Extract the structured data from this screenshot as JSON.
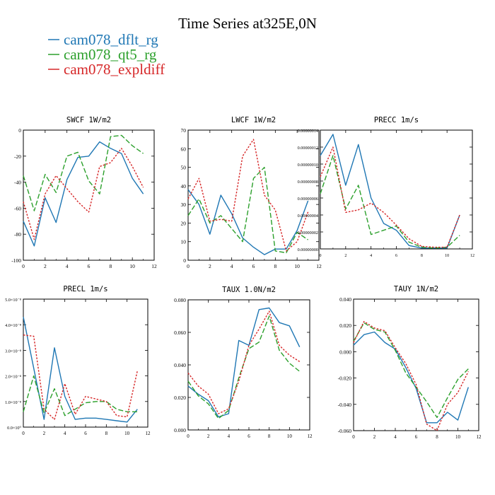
{
  "title": "Time Series at325E,0N",
  "legend": [
    {
      "name": "cam078_dflt_rg",
      "color": "#1f77b4",
      "dash": "solid"
    },
    {
      "name": "cam078_qt5_rg",
      "color": "#2ca02c",
      "dash": "dashed"
    },
    {
      "name": "cam078_expldiff",
      "color": "#d62728",
      "dash": "dotted"
    }
  ],
  "chart_data": [
    {
      "type": "line",
      "title": "SWCF   1W/m2",
      "x": [
        0,
        1,
        2,
        3,
        4,
        5,
        6,
        7,
        8,
        9,
        10,
        11
      ],
      "xticks": [
        "0",
        "2",
        "4",
        "6",
        "8",
        "10",
        "12"
      ],
      "xlim": [
        0,
        12
      ],
      "ylim": [
        -100,
        0
      ],
      "yticks": [
        0,
        -20,
        -40,
        -60,
        -80,
        -100
      ],
      "yticklabels": [
        "0",
        "-20",
        "-40",
        "-60",
        "-80",
        "-100"
      ],
      "series": [
        {
          "name": "cam078_dflt_rg",
          "values": [
            -70,
            -89,
            -52,
            -71,
            -38,
            -21,
            -20,
            -9,
            -14,
            -18,
            -37,
            -49
          ]
        },
        {
          "name": "cam078_qt5_rg",
          "values": [
            -35,
            -62,
            -34,
            -48,
            -20,
            -17,
            -39,
            -49,
            -5,
            -4,
            -12,
            -18
          ]
        },
        {
          "name": "cam078_expldiff",
          "values": [
            -55,
            -84,
            -49,
            -35,
            -45,
            -55,
            -63,
            -28,
            -25,
            -14,
            -28,
            -44
          ]
        }
      ]
    },
    {
      "type": "line",
      "title": "LWCF   1W/m2",
      "x": [
        0,
        1,
        2,
        3,
        4,
        5,
        6,
        7,
        8,
        9,
        10,
        11
      ],
      "xticks": [
        "0",
        "2",
        "4",
        "6",
        "8",
        "10",
        "12"
      ],
      "xlim": [
        0,
        12
      ],
      "ylim": [
        0,
        70
      ],
      "yticks": [
        0,
        10,
        20,
        30,
        40,
        50,
        60,
        70
      ],
      "yticklabels": [
        "0",
        "10",
        "20",
        "30",
        "40",
        "50",
        "60",
        "70"
      ],
      "series": [
        {
          "name": "cam078_dflt_rg",
          "values": [
            38,
            30,
            14,
            35,
            25,
            12,
            7,
            3,
            6,
            6,
            16,
            32
          ]
        },
        {
          "name": "cam078_qt5_rg",
          "values": [
            24,
            33,
            20,
            24,
            17,
            10,
            44,
            50,
            5,
            4,
            15,
            11
          ]
        },
        {
          "name": "cam078_expldiff",
          "values": [
            33,
            44,
            21,
            22,
            21,
            56,
            65,
            35,
            27,
            5,
            10,
            26
          ]
        }
      ]
    },
    {
      "type": "line",
      "title": "PRECC   1m/s",
      "x": [
        0,
        1,
        2,
        3,
        4,
        5,
        6,
        7,
        8,
        9,
        10,
        11
      ],
      "xticks": [
        "0",
        "2",
        "4",
        "6",
        "8",
        "10",
        "12"
      ],
      "xlim": [
        0,
        12
      ],
      "ylim": [
        0,
        1.4e-07
      ],
      "yticks": [
        0,
        2e-08,
        4e-08,
        6e-08,
        8e-08,
        1e-07,
        1.2e-07,
        1.4e-07
      ],
      "yticklabels": [
        "0.00000000",
        "0.00000002",
        "0.00000004",
        "0.00000006",
        "0.00000008",
        "0.00000010",
        "0.00000012",
        "0.00000014"
      ],
      "series": [
        {
          "name": "cam078_dflt_rg",
          "values": [
            1.1e-07,
            1.35e-07,
            7.5e-08,
            1.23e-07,
            6e-08,
            3e-08,
            2.2e-08,
            4e-09,
            1e-09,
            1e-09,
            1e-09,
            4e-08
          ]
        },
        {
          "name": "cam078_qt5_rg",
          "values": [
            6.5e-08,
            1.1e-07,
            4.7e-08,
            7.5e-08,
            1.7e-08,
            2.2e-08,
            2.7e-08,
            8e-09,
            2e-09,
            1e-09,
            2e-09,
            1.6e-08
          ]
        },
        {
          "name": "cam078_expldiff",
          "values": [
            8.5e-08,
            1.2e-07,
            4.3e-08,
            4.6e-08,
            5.4e-08,
            4.3e-08,
            2.8e-08,
            1.2e-08,
            3e-09,
            2e-09,
            2e-09,
            4e-08
          ]
        }
      ]
    },
    {
      "type": "line",
      "title": "PRECL   1m/s",
      "x": [
        0,
        1,
        2,
        3,
        4,
        5,
        6,
        7,
        8,
        9,
        10,
        11
      ],
      "xticks": [
        "0",
        "2",
        "4",
        "6",
        "8",
        "10",
        "12"
      ],
      "xlim": [
        0,
        12
      ],
      "ylim": [
        0,
        5
      ],
      "yticks": [
        0,
        1,
        2,
        3,
        4,
        5
      ],
      "yticklabels": [
        "0.0×10⁰",
        "1.0×10⁻⁸",
        "2.0×10⁻⁸",
        "3.0×10⁻⁸",
        "4.0×10⁻⁸",
        "5.0×10⁻⁸"
      ],
      "series": [
        {
          "name": "cam078_dflt_rg",
          "values": [
            4.3,
            2.3,
            0.3,
            3.1,
            1.2,
            0.3,
            0.35,
            0.35,
            0.3,
            0.25,
            0.2,
            0.7
          ]
        },
        {
          "name": "cam078_qt5_rg",
          "values": [
            0.6,
            2,
            0.55,
            1.5,
            0.45,
            0.7,
            0.95,
            1.0,
            1.0,
            0.7,
            0.6,
            0.6
          ]
        },
        {
          "name": "cam078_expldiff",
          "values": [
            3.6,
            3.55,
            0.7,
            0.3,
            1.7,
            0.5,
            1.2,
            1.1,
            1.0,
            0.45,
            0.4,
            2.2
          ]
        }
      ]
    },
    {
      "type": "line",
      "title": "TAUX   1.0N/m2",
      "x": [
        0,
        1,
        2,
        3,
        4,
        5,
        6,
        7,
        8,
        9,
        10,
        11
      ],
      "xticks": [
        "0",
        "2",
        "4",
        "6",
        "8",
        "10",
        "12"
      ],
      "xlim": [
        0,
        12
      ],
      "ylim": [
        0,
        0.08
      ],
      "yticks": [
        0,
        0.02,
        0.04,
        0.06,
        0.08
      ],
      "yticklabels": [
        "0.000",
        "0.020",
        "0.040",
        "0.060",
        "0.080"
      ],
      "series": [
        {
          "name": "cam078_dflt_rg",
          "values": [
            0.027,
            0.022,
            0.018,
            0.008,
            0.01,
            0.055,
            0.052,
            0.074,
            0.075,
            0.066,
            0.064,
            0.051
          ]
        },
        {
          "name": "cam078_qt5_rg",
          "values": [
            0.03,
            0.021,
            0.016,
            0.007,
            0.012,
            0.032,
            0.05,
            0.054,
            0.07,
            0.049,
            0.041,
            0.036
          ]
        },
        {
          "name": "cam078_expldiff",
          "values": [
            0.035,
            0.027,
            0.022,
            0.01,
            0.013,
            0.03,
            0.052,
            0.062,
            0.073,
            0.052,
            0.046,
            0.042
          ]
        }
      ]
    },
    {
      "type": "line",
      "title": "TAUY   1N/m2",
      "x": [
        0,
        1,
        2,
        3,
        4,
        5,
        6,
        7,
        8,
        9,
        10,
        11
      ],
      "xticks": [
        "0",
        "2",
        "4",
        "6",
        "8",
        "10",
        "12"
      ],
      "xlim": [
        0,
        12
      ],
      "ylim": [
        -0.06,
        0.04
      ],
      "yticks": [
        0.04,
        0.02,
        0,
        -0.02,
        -0.04,
        -0.06
      ],
      "yticklabels": [
        "0.040",
        "0.020",
        "0.000",
        "-0.020",
        "-0.040",
        "-0.060"
      ],
      "series": [
        {
          "name": "cam078_dflt_rg",
          "values": [
            0.005,
            0.013,
            0.015,
            0.007,
            0.002,
            -0.012,
            -0.028,
            -0.054,
            -0.054,
            -0.046,
            -0.052,
            -0.027
          ]
        },
        {
          "name": "cam078_qt5_rg",
          "values": [
            0.008,
            0.022,
            0.017,
            0.015,
            0.001,
            -0.016,
            -0.027,
            -0.038,
            -0.05,
            -0.035,
            -0.021,
            -0.013
          ]
        },
        {
          "name": "cam078_expldiff",
          "values": [
            0.007,
            0.023,
            0.018,
            0.016,
            0.003,
            -0.009,
            -0.025,
            -0.055,
            -0.06,
            -0.04,
            -0.031,
            -0.015
          ]
        }
      ]
    }
  ]
}
